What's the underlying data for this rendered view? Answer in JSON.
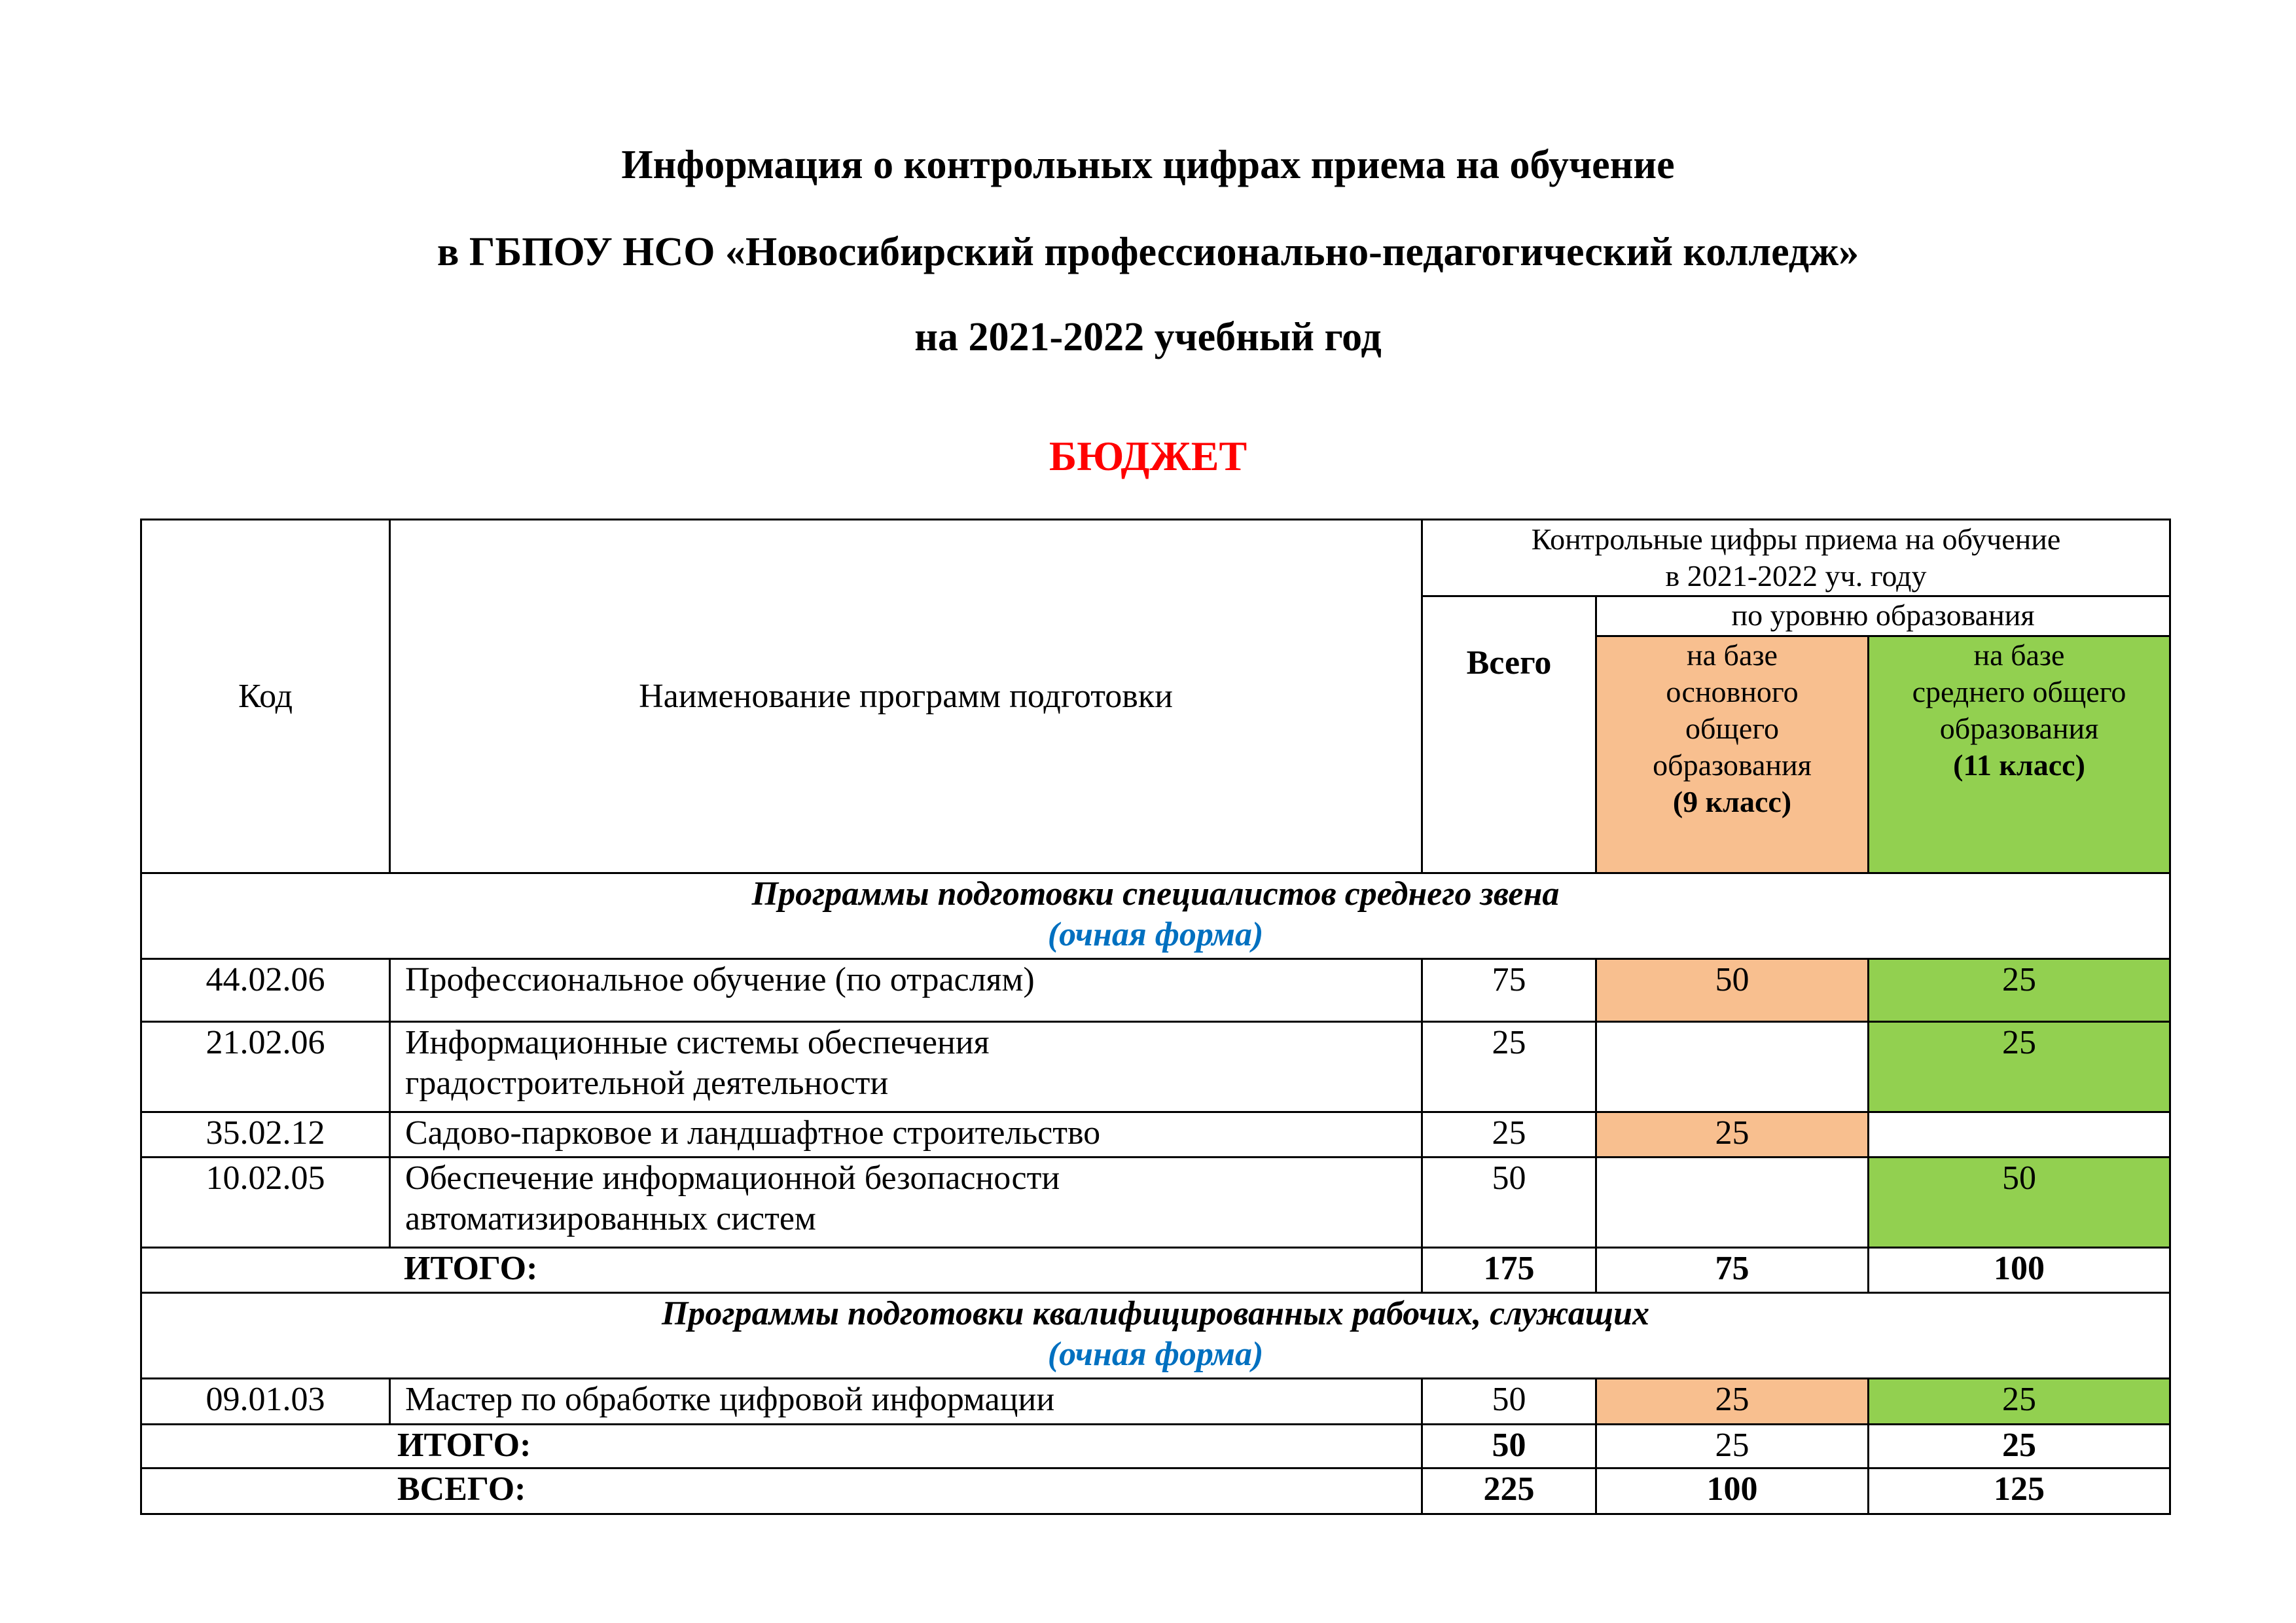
{
  "title": {
    "line1": "Информация о контрольных цифрах приема на обучение",
    "line2": "в ГБПОУ НСО «Новосибирский профессионально-педагогический колледж»",
    "line3": "на 2021-2022 учебный год"
  },
  "budget_label": "БЮДЖЕТ",
  "colors": {
    "budget": "#FF0000",
    "form": "#0070C0",
    "base9": "#F8BF8F",
    "base11": "#92D050"
  },
  "table": {
    "headers": {
      "code": "Код",
      "name": "Наименование программ подготовки",
      "kcp_line1": "Контрольные цифры приема на обучение",
      "kcp_line2": "в 2021-2022 уч. году",
      "total": "Всего",
      "by_level": "по уровню образования",
      "base9_lines": [
        "на базе",
        "основного",
        "общего",
        "образования"
      ],
      "base9_class": "(9 класс)",
      "base11_lines": [
        "на базе",
        "среднего общего",
        "образования"
      ],
      "base11_class": "(11 класс)"
    },
    "sections": [
      {
        "title": "Программы подготовки специалистов среднего звена",
        "form": "(очная форма)",
        "rows": [
          {
            "code": "44.02.06",
            "name_lines": [
              "Профессиональное обучение (по отраслям)"
            ],
            "total": "75",
            "base9": "50",
            "base11": "25"
          },
          {
            "code": "21.02.06",
            "name_lines": [
              "Информационные системы обеспечения",
              "градостроительной деятельности"
            ],
            "total": "25",
            "base9": "",
            "base11": "25"
          },
          {
            "code": "35.02.12",
            "name_lines": [
              "Садово-парковое и ландшафтное строительство"
            ],
            "total": "25",
            "base9": "25",
            "base11": ""
          },
          {
            "code": "10.02.05",
            "name_lines": [
              "Обеспечение информационной безопасности",
              "автоматизированных систем"
            ],
            "total": "50",
            "base9": "",
            "base11": "50"
          }
        ],
        "subtotal": {
          "label": "ИТОГО:",
          "total": "175",
          "base9": "75",
          "base11": "100"
        }
      },
      {
        "title": "Программы подготовки квалифицированных рабочих, служащих",
        "form": "(очная форма)",
        "rows": [
          {
            "code": "09.01.03",
            "name_lines": [
              "Мастер по обработке цифровой информации"
            ],
            "total": "50",
            "base9": "25",
            "base11": "25"
          }
        ],
        "subtotal": {
          "label": "ИТОГО:",
          "total": "50",
          "base9": "25",
          "base11": "25"
        }
      }
    ],
    "grand_total": {
      "label": "ВСЕГО:",
      "total": "225",
      "base9": "100",
      "base11": "125"
    }
  }
}
